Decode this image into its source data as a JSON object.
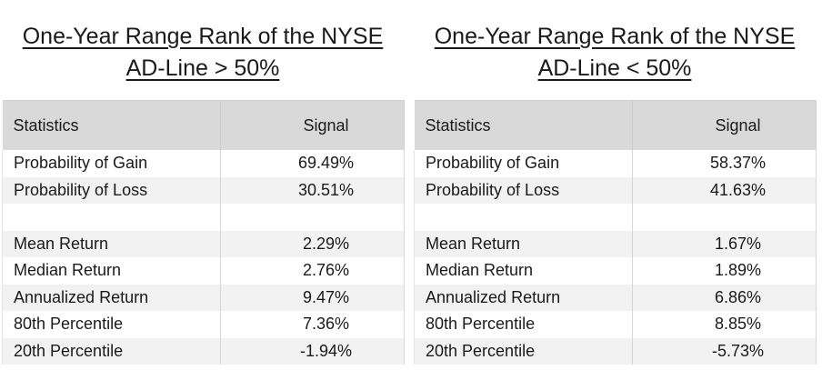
{
  "panels": [
    {
      "title_line1": "One-Year Range Rank of the NYSE",
      "title_line2": "AD-Line > 50%",
      "headers": {
        "statistics": "Statistics",
        "signal": "Signal"
      },
      "rows": [
        {
          "label": "Probability of Gain",
          "value": "69.49%"
        },
        {
          "label": "Probability of Loss",
          "value": "30.51%"
        },
        {
          "label": "",
          "value": ""
        },
        {
          "label": "Mean Return",
          "value": "2.29%"
        },
        {
          "label": "Median Return",
          "value": "2.76%"
        },
        {
          "label": "Annualized Return",
          "value": "9.47%"
        },
        {
          "label": "80th Percentile",
          "value": "7.36%"
        },
        {
          "label": "20th Percentile",
          "value": "-1.94%"
        }
      ]
    },
    {
      "title_line1": "One-Year Range Rank of the NYSE",
      "title_line2": "AD-Line < 50%",
      "headers": {
        "statistics": "Statistics",
        "signal": "Signal"
      },
      "rows": [
        {
          "label": "Probability of Gain",
          "value": "58.37%"
        },
        {
          "label": "Probability of Loss",
          "value": "41.63%"
        },
        {
          "label": "",
          "value": ""
        },
        {
          "label": "Mean Return",
          "value": "1.67%"
        },
        {
          "label": "Median Return",
          "value": "1.89%"
        },
        {
          "label": "Annualized Return",
          "value": "6.86%"
        },
        {
          "label": "80th Percentile",
          "value": "8.85%"
        },
        {
          "label": "20th Percentile",
          "value": "-5.73%"
        }
      ]
    }
  ]
}
